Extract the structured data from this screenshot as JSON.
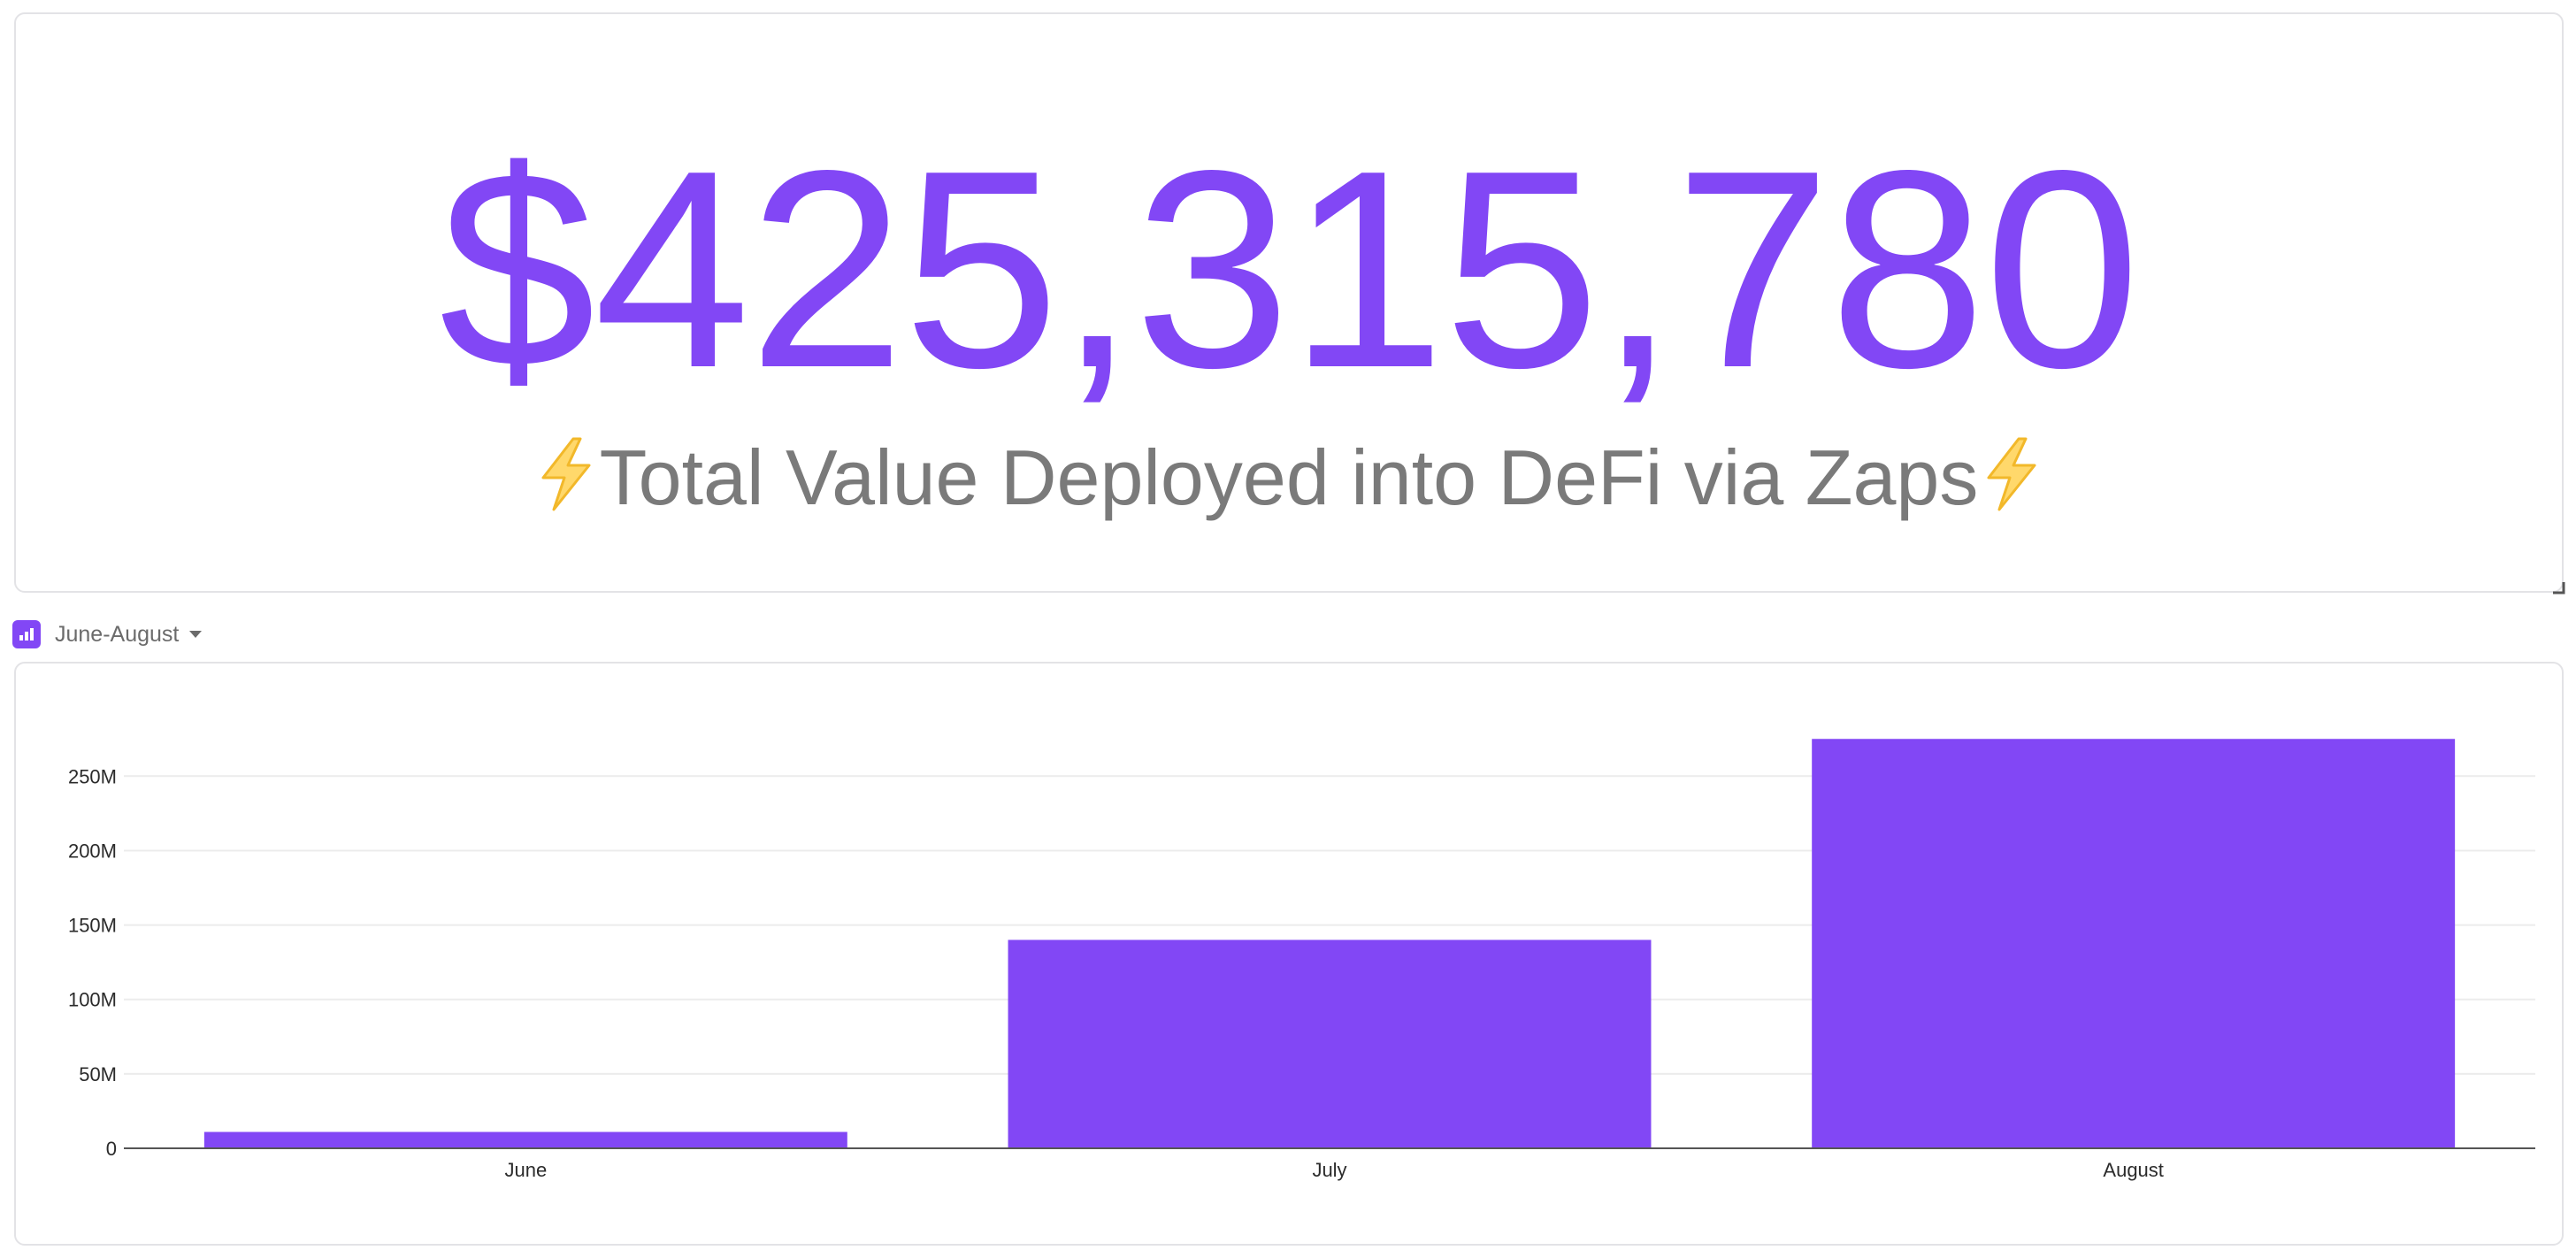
{
  "metric": {
    "value": "$425,315,780",
    "label": "Total Value Deployed into DeFi via Zaps",
    "label_icon": "lightning-bolt-icon"
  },
  "chart_header": {
    "icon": "bar-chart-icon",
    "range_label": "June-August"
  },
  "colors": {
    "accent": "#8247f5",
    "label_gray": "#7a7a7a",
    "bolt": "#f5c431"
  },
  "chart_data": {
    "type": "bar",
    "categories": [
      "June",
      "July",
      "August"
    ],
    "values": [
      11000000,
      140000000,
      275000000
    ],
    "title": "",
    "xlabel": "",
    "ylabel": "",
    "ylim": [
      0,
      290000000
    ],
    "yticks": [
      0,
      50000000,
      100000000,
      150000000,
      200000000,
      250000000
    ],
    "ytick_labels": [
      "0",
      "50M",
      "100M",
      "150M",
      "200M",
      "250M"
    ],
    "grid": true,
    "legend": "none",
    "bar_color": "#8247f5"
  }
}
